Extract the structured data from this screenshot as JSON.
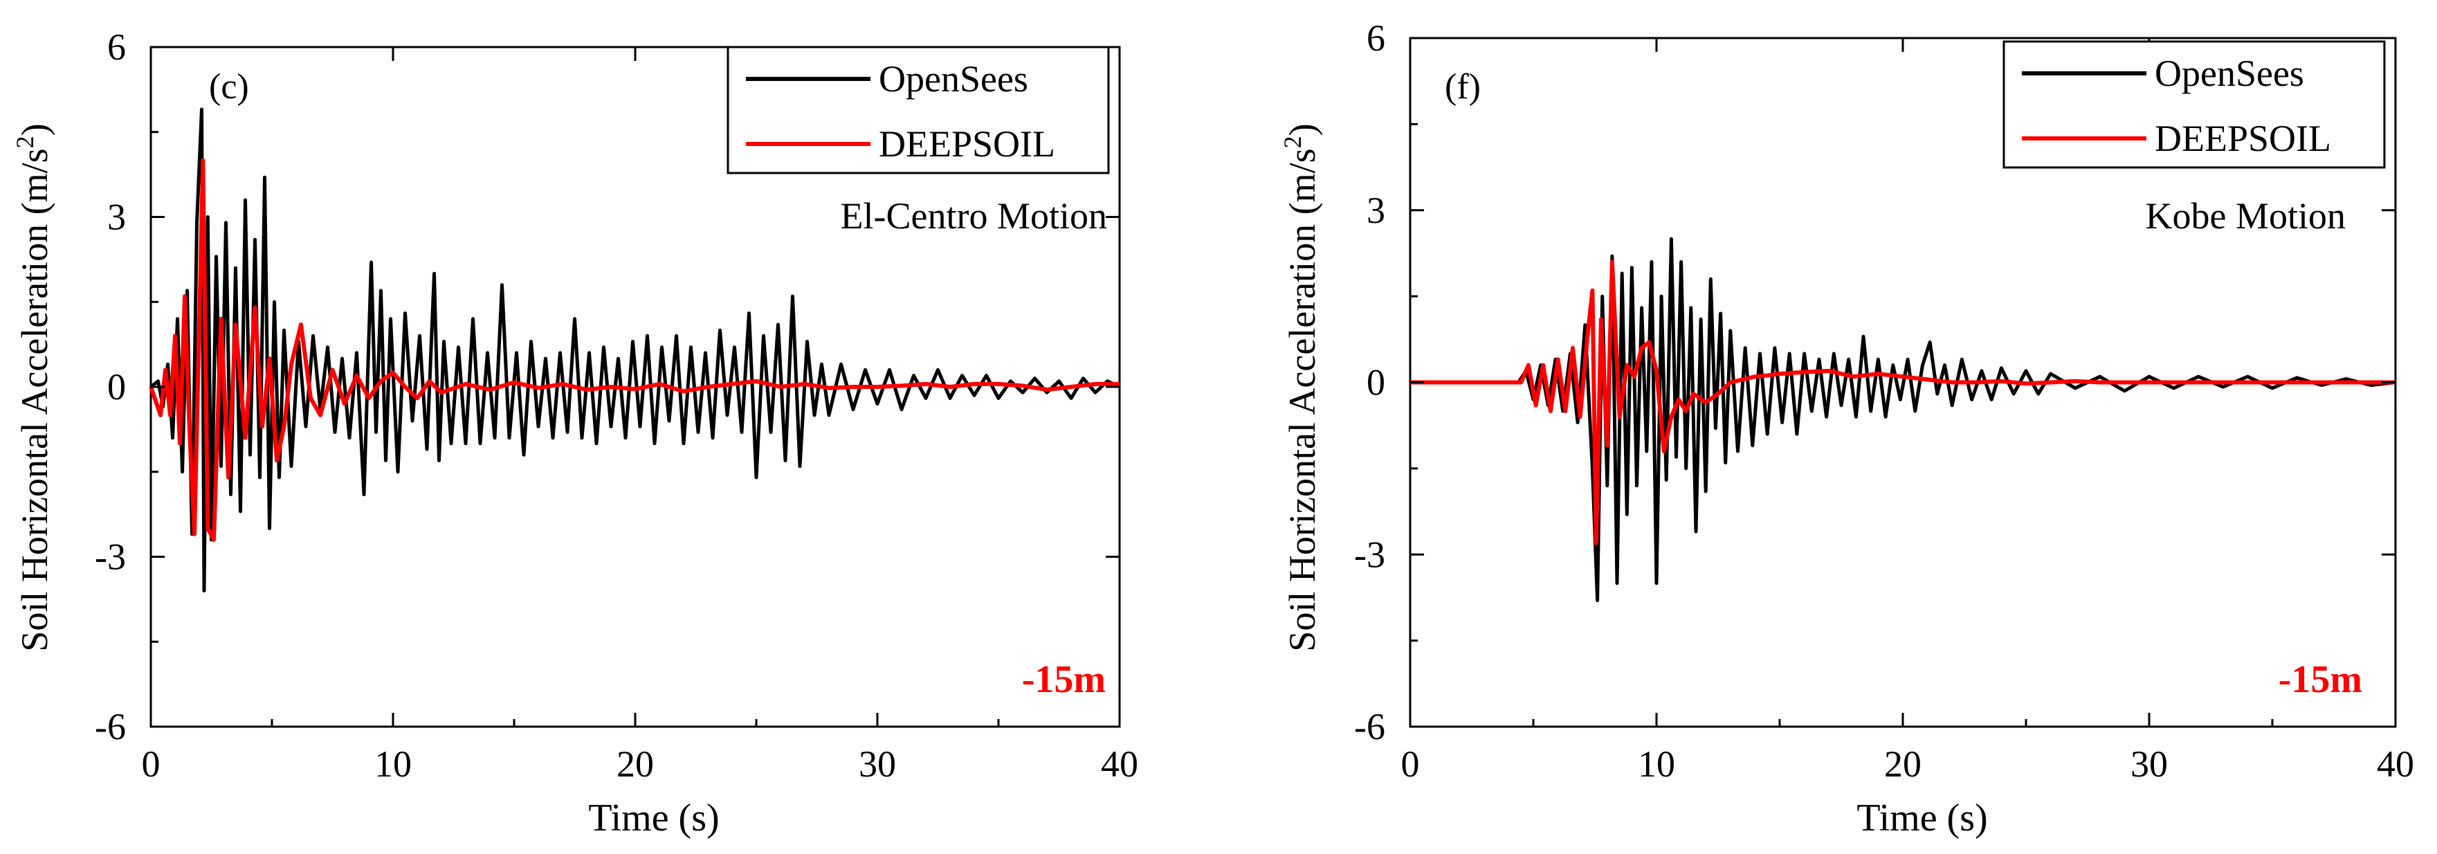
{
  "chart_data": [
    {
      "type": "line",
      "panel_label": "(c)",
      "motion_label": "El-Centro Motion",
      "depth_label": "-15m",
      "xlabel": "Time (s)",
      "ylabel": "Soil Horizontal Acceleration (m/s",
      "ylabel_sup": "2",
      "ylabel_close": ")",
      "xlim": [
        0,
        40
      ],
      "ylim": [
        -6,
        6
      ],
      "xticks": [
        0,
        10,
        20,
        30,
        40
      ],
      "yticks": [
        -6,
        -3,
        0,
        3,
        6
      ],
      "legend_position": "top-right",
      "series": [
        {
          "name": "OpenSees",
          "color": "#000000",
          "t": [
            0,
            0.3,
            0.5,
            0.7,
            0.9,
            1.1,
            1.3,
            1.5,
            1.7,
            1.9,
            2.1,
            2.2,
            2.35,
            2.5,
            2.7,
            2.9,
            3.1,
            3.3,
            3.5,
            3.7,
            3.9,
            4.1,
            4.3,
            4.5,
            4.7,
            4.9,
            5.1,
            5.3,
            5.5,
            5.8,
            6.1,
            6.4,
            6.7,
            7.0,
            7.3,
            7.6,
            7.9,
            8.2,
            8.5,
            8.8,
            9.1,
            9.3,
            9.5,
            9.7,
            9.9,
            10.2,
            10.5,
            10.8,
            11.1,
            11.4,
            11.7,
            11.9,
            12.1,
            12.4,
            12.7,
            13.0,
            13.3,
            13.6,
            13.9,
            14.2,
            14.5,
            14.8,
            15.1,
            15.4,
            15.7,
            16.0,
            16.3,
            16.6,
            16.9,
            17.2,
            17.5,
            17.8,
            18.1,
            18.4,
            18.7,
            19.0,
            19.3,
            19.6,
            19.9,
            20.2,
            20.5,
            20.8,
            21.1,
            21.4,
            21.7,
            22.0,
            22.3,
            22.6,
            22.9,
            23.2,
            23.5,
            23.8,
            24.1,
            24.4,
            24.7,
            25.0,
            25.3,
            25.6,
            25.9,
            26.2,
            26.5,
            26.8,
            27.1,
            27.4,
            27.7,
            28.0,
            28.5,
            29.0,
            29.5,
            30.0,
            30.5,
            31.0,
            31.5,
            32.0,
            32.5,
            33.0,
            33.5,
            34.0,
            34.5,
            35.0,
            35.5,
            36.0,
            36.5,
            37.0,
            37.5,
            38.0,
            38.5,
            39.0,
            39.5,
            40.0
          ],
          "a": [
            0,
            0.1,
            -0.35,
            0.4,
            -0.9,
            1.2,
            -1.5,
            1.7,
            -2.6,
            2.9,
            4.9,
            -3.6,
            3.0,
            -2.7,
            2.3,
            -1.4,
            2.9,
            -1.9,
            2.1,
            -2.2,
            3.3,
            -1.2,
            2.6,
            -1.6,
            3.7,
            -2.5,
            1.5,
            -1.6,
            1.0,
            -1.4,
            0.8,
            -0.7,
            0.9,
            -0.4,
            0.7,
            -0.8,
            0.5,
            -0.9,
            0.6,
            -1.9,
            2.2,
            -0.8,
            1.7,
            -1.3,
            1.2,
            -1.5,
            1.3,
            -0.6,
            0.9,
            -1.1,
            2.0,
            -1.3,
            0.8,
            -1.0,
            0.7,
            -1.0,
            1.2,
            -1.0,
            0.6,
            -0.9,
            1.8,
            -0.9,
            0.6,
            -1.2,
            0.8,
            -0.7,
            0.5,
            -0.9,
            0.6,
            -0.8,
            1.2,
            -0.9,
            0.6,
            -1.0,
            0.7,
            -0.7,
            0.5,
            -0.9,
            0.8,
            -0.7,
            0.9,
            -1.0,
            0.7,
            -0.6,
            0.9,
            -1.0,
            0.7,
            -0.8,
            0.6,
            -0.9,
            1.0,
            -0.5,
            0.7,
            -0.8,
            1.3,
            -1.6,
            0.9,
            -0.8,
            1.1,
            -1.3,
            1.6,
            -1.4,
            0.8,
            -0.5,
            0.4,
            -0.5,
            0.4,
            -0.4,
            0.3,
            -0.3,
            0.3,
            -0.4,
            0.2,
            -0.2,
            0.3,
            -0.2,
            0.2,
            -0.15,
            0.2,
            -0.2,
            0.1,
            -0.1,
            0.15,
            -0.1,
            0.1,
            -0.2,
            0.15,
            -0.1,
            0.1,
            0
          ]
        },
        {
          "name": "DEEPSOIL",
          "color": "#ff0000",
          "t": [
            0,
            0.4,
            0.6,
            0.8,
            1.0,
            1.2,
            1.4,
            1.6,
            1.8,
            2.0,
            2.15,
            2.35,
            2.6,
            2.9,
            3.2,
            3.5,
            3.9,
            4.3,
            4.6,
            4.9,
            5.2,
            5.5,
            5.8,
            6.2,
            6.6,
            7.0,
            7.5,
            8.0,
            8.5,
            9.0,
            9.5,
            10.0,
            10.5,
            11.0,
            11.5,
            12.0,
            13.0,
            14.0,
            15.0,
            16.0,
            17.0,
            18.0,
            19.0,
            20.0,
            21.0,
            22.0,
            23.0,
            24.0,
            25.0,
            26.0,
            27.0,
            28.0,
            29.0,
            30.0,
            31.0,
            32.0,
            33.0,
            34.0,
            35.0,
            36.0,
            37.0,
            38.0,
            39.0,
            40.0
          ],
          "a": [
            0,
            -0.5,
            0.3,
            -0.5,
            0.9,
            -1.0,
            1.6,
            -0.8,
            -2.6,
            1.1,
            4.0,
            -2.5,
            -2.7,
            1.2,
            -1.6,
            1.1,
            -0.9,
            1.4,
            -0.7,
            0.5,
            -1.3,
            -0.7,
            0.4,
            1.1,
            -0.2,
            -0.5,
            0.3,
            -0.3,
            0.2,
            -0.2,
            0.1,
            0.25,
            0.0,
            -0.2,
            0.1,
            -0.1,
            0.05,
            -0.05,
            0.08,
            -0.02,
            0.05,
            -0.05,
            0.0,
            -0.04,
            0.05,
            -0.08,
            0.0,
            0.05,
            0.1,
            0.0,
            0.05,
            -0.02,
            0.0,
            0.0,
            0.02,
            0.05,
            0.0,
            0.05,
            0.05,
            0.02,
            -0.05,
            0.0,
            0.05,
            0.05
          ]
        }
      ]
    },
    {
      "type": "line",
      "panel_label": "(f)",
      "motion_label": "Kobe Motion",
      "depth_label": "-15m",
      "xlabel": "Time (s)",
      "ylabel": "Soil Horizontal Acceleration (m/s",
      "ylabel_sup": "2",
      "ylabel_close": ")",
      "xlim": [
        0,
        40
      ],
      "ylim": [
        -6,
        6
      ],
      "xticks": [
        0,
        10,
        20,
        30,
        40
      ],
      "yticks": [
        -6,
        -3,
        0,
        3,
        6
      ],
      "legend_position": "top-right",
      "series": [
        {
          "name": "OpenSees",
          "color": "#000000",
          "t": [
            0,
            4.4,
            4.7,
            5.0,
            5.3,
            5.6,
            5.9,
            6.2,
            6.5,
            6.8,
            7.1,
            7.4,
            7.6,
            7.8,
            8.0,
            8.2,
            8.4,
            8.6,
            8.8,
            9.0,
            9.2,
            9.4,
            9.6,
            9.8,
            10.0,
            10.2,
            10.4,
            10.6,
            10.8,
            11.0,
            11.2,
            11.4,
            11.6,
            11.8,
            12.0,
            12.2,
            12.4,
            12.6,
            12.8,
            13.0,
            13.3,
            13.6,
            13.9,
            14.2,
            14.5,
            14.8,
            15.1,
            15.4,
            15.7,
            16.0,
            16.3,
            16.6,
            16.9,
            17.2,
            17.5,
            17.8,
            18.1,
            18.4,
            18.7,
            19.0,
            19.3,
            19.6,
            19.9,
            20.2,
            20.5,
            20.8,
            21.1,
            21.4,
            21.7,
            22.0,
            22.4,
            22.8,
            23.2,
            23.6,
            24.0,
            24.5,
            25.0,
            25.5,
            26.0,
            27.0,
            28.0,
            29.0,
            30.0,
            31.0,
            32.0,
            33.0,
            34.0,
            35.0,
            36.0,
            37.0,
            38.0,
            39.0,
            40.0
          ],
          "a": [
            0,
            0,
            0.2,
            -0.3,
            0.3,
            -0.4,
            0.4,
            -0.5,
            0.5,
            -0.7,
            1.0,
            -1.5,
            -3.8,
            1.5,
            -1.8,
            2.2,
            -3.5,
            1.9,
            -2.3,
            2.0,
            -1.8,
            1.3,
            -1.2,
            2.1,
            -3.5,
            1.5,
            -1.7,
            2.5,
            -1.3,
            2.1,
            -1.5,
            1.3,
            -2.6,
            1.1,
            -1.9,
            1.8,
            -0.8,
            1.2,
            -1.4,
            0.9,
            -1.2,
            0.6,
            -1.1,
            0.5,
            -0.9,
            0.6,
            -0.7,
            0.5,
            -0.9,
            0.5,
            -0.5,
            0.4,
            -0.6,
            0.5,
            -0.4,
            0.4,
            -0.6,
            0.8,
            -0.5,
            0.4,
            -0.6,
            0.3,
            -0.3,
            0.4,
            -0.5,
            0.3,
            0.7,
            -0.2,
            0.3,
            -0.4,
            0.4,
            -0.3,
            0.2,
            -0.3,
            0.25,
            -0.2,
            0.2,
            -0.2,
            0.15,
            -0.1,
            0.1,
            -0.15,
            0.1,
            -0.1,
            0.1,
            -0.08,
            0.1,
            -0.1,
            0.08,
            -0.05,
            0.06,
            -0.05,
            0
          ]
        },
        {
          "name": "DEEPSOIL",
          "color": "#ff0000",
          "t": [
            0,
            4.5,
            4.8,
            5.1,
            5.4,
            5.7,
            6.0,
            6.3,
            6.6,
            6.9,
            7.2,
            7.4,
            7.55,
            7.75,
            8.0,
            8.2,
            8.5,
            8.8,
            9.1,
            9.4,
            9.7,
            10.0,
            10.3,
            10.6,
            10.9,
            11.2,
            11.5,
            12.0,
            12.5,
            13.0,
            13.5,
            14.0,
            14.5,
            15.0,
            16.0,
            17.0,
            18.0,
            19.0,
            20.0,
            21.0,
            22.0,
            23.0,
            24.0,
            25.0,
            26.0,
            27.0,
            28.0,
            30.0,
            32.0,
            34.0,
            36.0,
            38.0,
            40.0
          ],
          "a": [
            0,
            0,
            0.3,
            -0.4,
            0.3,
            -0.5,
            0.4,
            -0.5,
            0.6,
            -0.6,
            0.8,
            1.6,
            -2.8,
            1.1,
            -1.1,
            2.1,
            -0.6,
            0.3,
            0.1,
            0.6,
            0.7,
            0.2,
            -1.2,
            -0.6,
            -0.3,
            -0.5,
            -0.2,
            -0.35,
            -0.2,
            0.0,
            0.05,
            0.1,
            0.12,
            0.15,
            0.18,
            0.2,
            0.1,
            0.15,
            0.1,
            0.05,
            0.0,
            0.0,
            0.02,
            -0.02,
            0.0,
            0.02,
            0.0,
            0.0,
            0.0,
            0.0,
            0.0,
            0.0,
            0.0
          ]
        }
      ]
    }
  ]
}
